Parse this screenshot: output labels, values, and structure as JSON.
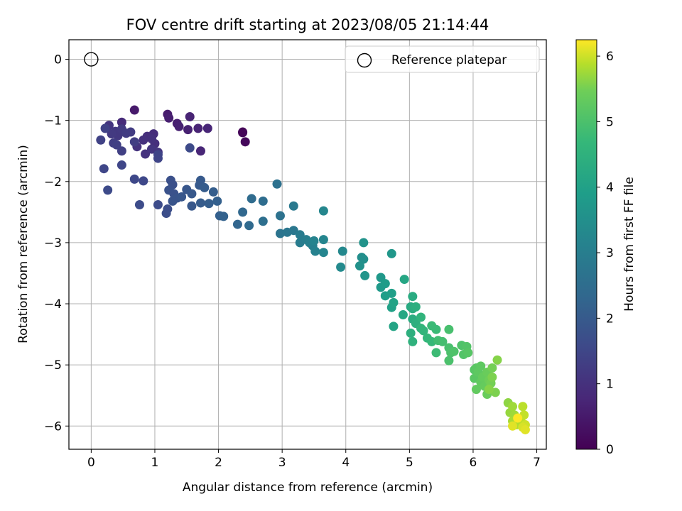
{
  "chart_data": {
    "type": "scatter",
    "title": "FOV centre drift starting at 2023/08/05 21:14:44",
    "xlabel": "Angular distance from reference (arcmin)",
    "ylabel": "Rotation from reference (arcmin)",
    "xlim": [
      -0.35,
      7.15
    ],
    "ylim": [
      -6.38,
      0.32
    ],
    "x_ticks": [
      "0",
      "1",
      "2",
      "3",
      "4",
      "5",
      "6",
      "7"
    ],
    "y_ticks": [
      "0",
      "−1",
      "−2",
      "−3",
      "−4",
      "−5",
      "−6"
    ],
    "grid": true,
    "legend": {
      "placement": "top-right",
      "entries": [
        "Reference platepar"
      ]
    },
    "reference_point": {
      "x": 0,
      "y": 0
    },
    "colorbar": {
      "label": "Hours from first FF file",
      "range": [
        0,
        6.25
      ],
      "ticks": [
        "0",
        "1",
        "2",
        "3",
        "4",
        "5",
        "6"
      ],
      "colormap": "viridis"
    },
    "series": [
      {
        "points": [
          [
            2.38,
            -1.19,
            0.05
          ],
          [
            2.38,
            -1.2,
            0.1
          ],
          [
            2.42,
            -1.35,
            0.15
          ],
          [
            0.68,
            -0.83,
            0.5
          ],
          [
            1.2,
            -0.9,
            0.55
          ],
          [
            1.22,
            -0.96,
            0.6
          ],
          [
            1.35,
            -1.05,
            0.6
          ],
          [
            1.38,
            -1.1,
            0.65
          ],
          [
            1.52,
            -1.15,
            0.65
          ],
          [
            1.55,
            -0.94,
            0.7
          ],
          [
            1.68,
            -1.13,
            0.7
          ],
          [
            1.83,
            -1.13,
            0.75
          ],
          [
            1.72,
            -1.5,
            0.75
          ],
          [
            0.48,
            -1.03,
            0.85
          ],
          [
            0.98,
            -1.22,
            0.9
          ],
          [
            0.88,
            -1.26,
            0.95
          ],
          [
            1.0,
            -1.38,
            0.95
          ],
          [
            0.95,
            -1.3,
            1.0
          ],
          [
            0.82,
            -1.32,
            1.0
          ],
          [
            0.72,
            -1.43,
            1.05
          ],
          [
            0.85,
            -1.55,
            1.05
          ],
          [
            0.95,
            -1.47,
            1.1
          ],
          [
            1.05,
            -1.52,
            1.1
          ],
          [
            0.28,
            -1.08,
            1.1
          ],
          [
            0.38,
            -1.18,
            1.15
          ],
          [
            0.42,
            -1.25,
            1.15
          ],
          [
            0.32,
            -1.22,
            1.2
          ],
          [
            0.48,
            -1.14,
            1.2
          ],
          [
            0.55,
            -1.21,
            1.25
          ],
          [
            0.62,
            -1.19,
            1.25
          ],
          [
            0.68,
            -1.35,
            1.3
          ],
          [
            0.35,
            -1.37,
            1.3
          ],
          [
            0.4,
            -1.4,
            1.35
          ],
          [
            0.48,
            -1.5,
            1.35
          ],
          [
            0.15,
            -1.32,
            1.4
          ],
          [
            0.22,
            -1.13,
            1.4
          ],
          [
            1.05,
            -1.56,
            1.45
          ],
          [
            1.05,
            -1.62,
            1.45
          ],
          [
            0.48,
            -1.73,
            1.5
          ],
          [
            0.2,
            -1.79,
            1.5
          ],
          [
            0.68,
            -1.96,
            1.55
          ],
          [
            0.82,
            -1.99,
            1.55
          ],
          [
            1.55,
            -1.45,
            1.6
          ],
          [
            0.26,
            -2.14,
            1.6
          ],
          [
            0.76,
            -2.38,
            1.65
          ],
          [
            1.05,
            -2.38,
            1.65
          ],
          [
            1.18,
            -2.52,
            1.7
          ],
          [
            1.2,
            -2.45,
            1.7
          ],
          [
            1.25,
            -1.98,
            1.75
          ],
          [
            1.28,
            -2.05,
            1.75
          ],
          [
            1.22,
            -2.14,
            1.8
          ],
          [
            1.3,
            -2.2,
            1.8
          ],
          [
            1.35,
            -2.27,
            1.85
          ],
          [
            1.28,
            -2.32,
            1.85
          ],
          [
            1.42,
            -2.25,
            1.9
          ],
          [
            1.5,
            -2.13,
            1.9
          ],
          [
            1.58,
            -2.2,
            1.95
          ],
          [
            1.58,
            -2.4,
            1.95
          ],
          [
            1.72,
            -1.98,
            2.0
          ],
          [
            1.7,
            -2.06,
            2.0
          ],
          [
            1.78,
            -2.1,
            2.05
          ],
          [
            1.72,
            -2.35,
            2.05
          ],
          [
            1.85,
            -2.36,
            2.1
          ],
          [
            1.92,
            -2.17,
            2.1
          ],
          [
            1.98,
            -2.32,
            2.15
          ],
          [
            2.02,
            -2.56,
            2.15
          ],
          [
            2.08,
            -2.57,
            2.2
          ],
          [
            2.3,
            -2.7,
            2.3
          ],
          [
            2.38,
            -2.5,
            2.35
          ],
          [
            2.48,
            -2.72,
            2.4
          ],
          [
            2.52,
            -2.28,
            2.45
          ],
          [
            2.7,
            -2.32,
            2.5
          ],
          [
            2.7,
            -2.65,
            2.55
          ],
          [
            2.92,
            -2.04,
            2.6
          ],
          [
            2.97,
            -2.56,
            2.65
          ],
          [
            2.97,
            -2.85,
            2.7
          ],
          [
            3.08,
            -2.83,
            2.75
          ],
          [
            3.18,
            -2.8,
            2.8
          ],
          [
            3.18,
            -2.4,
            2.85
          ],
          [
            3.28,
            -2.87,
            2.9
          ],
          [
            3.28,
            -3.0,
            2.95
          ],
          [
            3.38,
            -2.95,
            3.0
          ],
          [
            3.48,
            -3.05,
            3.0
          ],
          [
            3.43,
            -3.0,
            3.05
          ],
          [
            3.52,
            -3.14,
            3.1
          ],
          [
            3.5,
            -2.97,
            3.15
          ],
          [
            3.65,
            -2.95,
            3.2
          ],
          [
            3.65,
            -3.16,
            3.2
          ],
          [
            3.65,
            -2.48,
            3.25
          ],
          [
            3.95,
            -3.14,
            3.3
          ],
          [
            3.92,
            -3.4,
            3.35
          ],
          [
            4.25,
            -3.24,
            3.45
          ],
          [
            4.28,
            -3.27,
            3.5
          ],
          [
            4.22,
            -3.38,
            3.55
          ],
          [
            4.28,
            -3.0,
            3.6
          ],
          [
            4.3,
            -3.54,
            3.65
          ],
          [
            4.72,
            -3.18,
            3.7
          ],
          [
            4.55,
            -3.57,
            3.75
          ],
          [
            4.55,
            -3.73,
            3.8
          ],
          [
            4.62,
            -3.67,
            3.85
          ],
          [
            4.62,
            -3.87,
            3.9
          ],
          [
            4.72,
            -3.83,
            3.95
          ],
          [
            4.72,
            -4.06,
            4.0
          ],
          [
            4.75,
            -3.98,
            4.05
          ],
          [
            4.75,
            -4.37,
            4.1
          ],
          [
            4.92,
            -3.6,
            4.15
          ],
          [
            4.9,
            -4.18,
            4.2
          ],
          [
            5.02,
            -4.05,
            4.25
          ],
          [
            5.05,
            -3.88,
            4.3
          ],
          [
            5.05,
            -4.08,
            4.35
          ],
          [
            5.05,
            -4.25,
            4.35
          ],
          [
            5.1,
            -4.05,
            4.4
          ],
          [
            5.1,
            -4.32,
            4.45
          ],
          [
            5.02,
            -4.48,
            4.45
          ],
          [
            5.05,
            -4.62,
            4.5
          ],
          [
            5.18,
            -4.22,
            4.55
          ],
          [
            5.18,
            -4.4,
            4.6
          ],
          [
            5.22,
            -4.44,
            4.6
          ],
          [
            5.28,
            -4.56,
            4.65
          ],
          [
            5.35,
            -4.62,
            4.7
          ],
          [
            5.35,
            -4.36,
            4.75
          ],
          [
            5.42,
            -4.42,
            4.75
          ],
          [
            5.42,
            -4.8,
            4.8
          ],
          [
            5.45,
            -4.6,
            4.85
          ],
          [
            5.52,
            -4.62,
            4.9
          ],
          [
            5.62,
            -4.42,
            4.95
          ],
          [
            5.62,
            -4.72,
            4.95
          ],
          [
            5.62,
            -4.93,
            5.0
          ],
          [
            5.65,
            -4.8,
            5.0
          ],
          [
            5.7,
            -4.78,
            5.05
          ],
          [
            5.82,
            -4.68,
            5.05
          ],
          [
            5.85,
            -4.83,
            5.1
          ],
          [
            5.9,
            -4.7,
            5.1
          ],
          [
            5.92,
            -4.8,
            5.15
          ],
          [
            6.02,
            -5.08,
            5.15
          ],
          [
            6.05,
            -5.05,
            5.2
          ],
          [
            6.02,
            -5.22,
            5.2
          ],
          [
            6.08,
            -5.12,
            5.25
          ],
          [
            6.12,
            -5.02,
            5.25
          ],
          [
            6.12,
            -5.28,
            5.3
          ],
          [
            6.05,
            -5.4,
            5.3
          ],
          [
            6.15,
            -5.2,
            5.35
          ],
          [
            6.18,
            -5.35,
            5.35
          ],
          [
            6.22,
            -5.12,
            5.4
          ],
          [
            6.22,
            -5.48,
            5.4
          ],
          [
            6.25,
            -5.25,
            5.45
          ],
          [
            6.28,
            -5.3,
            5.5
          ],
          [
            6.3,
            -5.05,
            5.5
          ],
          [
            6.3,
            -5.2,
            5.55
          ],
          [
            6.35,
            -5.45,
            5.55
          ],
          [
            6.38,
            -4.92,
            5.6
          ],
          [
            6.25,
            -5.4,
            5.6
          ],
          [
            6.55,
            -5.62,
            5.65
          ],
          [
            6.58,
            -5.78,
            5.7
          ],
          [
            6.62,
            -5.68,
            5.75
          ],
          [
            6.65,
            -5.82,
            5.75
          ],
          [
            6.62,
            -5.92,
            5.8
          ],
          [
            6.68,
            -5.98,
            5.85
          ],
          [
            6.75,
            -5.88,
            5.9
          ],
          [
            6.78,
            -5.68,
            5.9
          ],
          [
            6.8,
            -5.82,
            5.95
          ],
          [
            6.82,
            -5.98,
            6.0
          ],
          [
            6.78,
            -6.02,
            6.05
          ],
          [
            6.82,
            -6.06,
            6.1
          ],
          [
            6.62,
            -6.0,
            6.1
          ],
          [
            6.7,
            -5.87,
            6.25
          ]
        ]
      }
    ]
  }
}
